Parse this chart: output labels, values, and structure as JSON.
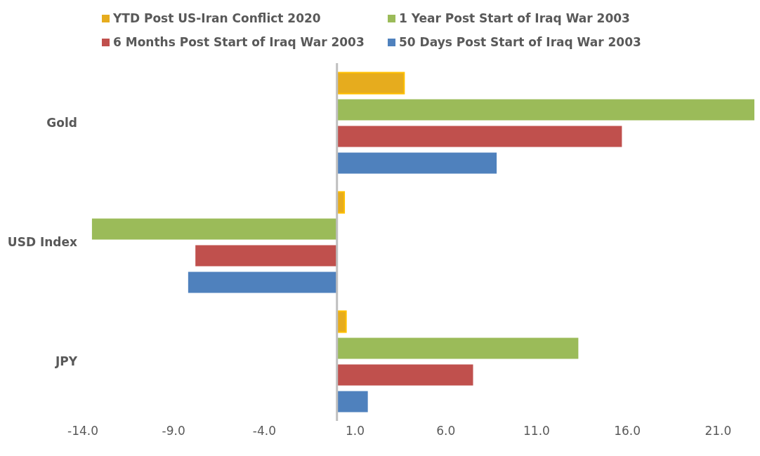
{
  "chart_data": {
    "type": "bar",
    "orientation": "horizontal",
    "categories": [
      "Gold",
      "USD Index",
      "JPY"
    ],
    "series": [
      {
        "name": "YTD Post US-Iran Conflict 2020",
        "color": "#e6ac1e",
        "values": [
          3.7,
          0.4,
          0.5
        ]
      },
      {
        "name": "1 Year Post Start of Iraq War 2003",
        "color": "#9bbb59",
        "values": [
          23,
          -13.5,
          13.3
        ]
      },
      {
        "name": "6 Months Post Start of Iraq War 2003",
        "color": "#c0504d",
        "values": [
          15.7,
          -7.8,
          7.5
        ]
      },
      {
        "name": "50 Days Post Start of Iraq War 2003",
        "color": "#4f81bd",
        "values": [
          8.8,
          -8.2,
          1.7
        ]
      }
    ],
    "xlim": [
      -14,
      23
    ],
    "xticks": [
      {
        "value": -14,
        "label": "-14.0"
      },
      {
        "value": -9,
        "label": "-9.0"
      },
      {
        "value": -4,
        "label": "-4.0"
      },
      {
        "value": 1,
        "label": "1.0"
      },
      {
        "value": 6,
        "label": "6.0"
      },
      {
        "value": 11,
        "label": "11.0"
      },
      {
        "value": 16,
        "label": "16.0"
      },
      {
        "value": 21,
        "label": "21.0"
      }
    ],
    "grid": false,
    "legend": "top"
  }
}
